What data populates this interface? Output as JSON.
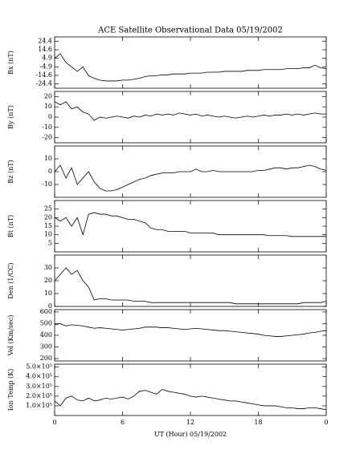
{
  "title": "ACE Satellite Observational Data   05/19/2002",
  "xlabel": "UT (Hour)  05/19/2002",
  "chart_data": [
    {
      "type": "line",
      "ylabel": "Bx (nT)",
      "color": "#000000",
      "x": [
        0,
        0.5,
        1,
        1.5,
        2,
        2.5,
        3,
        3.5,
        4,
        4.5,
        5,
        5.5,
        6,
        6.5,
        7,
        7.5,
        8,
        8.5,
        9,
        9.5,
        10,
        10.5,
        11,
        11.5,
        12,
        12.5,
        13,
        13.5,
        14,
        14.5,
        15,
        15.5,
        16,
        16.5,
        17,
        17.5,
        18,
        18.5,
        19,
        19.5,
        20,
        20.5,
        21,
        21.5,
        22,
        22.5,
        23,
        23.5,
        24
      ],
      "values": [
        5,
        10,
        0,
        -5,
        -10,
        -5,
        -15,
        -18,
        -20,
        -21,
        -21,
        -21,
        -20,
        -20,
        -19,
        -18,
        -16,
        -15,
        -15,
        -14,
        -14,
        -13,
        -13,
        -13,
        -12,
        -12,
        -12,
        -11,
        -11,
        -11,
        -10,
        -10,
        -10,
        -10,
        -9,
        -9,
        -9,
        -8,
        -8,
        -8,
        -8,
        -7,
        -7,
        -7,
        -6,
        -6,
        -3,
        -6,
        -7
      ],
      "ylim": [
        -29.3,
        29.3
      ],
      "yticks": [
        24.4,
        14.6,
        4.9,
        -4.9,
        -14.6,
        -24.4
      ],
      "xlim": [
        0,
        24
      ],
      "xticks": [
        0,
        6,
        12,
        18,
        {
          "value": 24,
          "label": "0"
        }
      ]
    },
    {
      "type": "line",
      "ylabel": "By (nT)",
      "color": "#000000",
      "x": [
        0,
        0.5,
        1,
        1.5,
        2,
        2.5,
        3,
        3.5,
        4,
        4.5,
        5,
        5.5,
        6,
        6.5,
        7,
        7.5,
        8,
        8.5,
        9,
        9.5,
        10,
        10.5,
        11,
        11.5,
        12,
        12.5,
        13,
        13.5,
        14,
        14.5,
        15,
        15.5,
        16,
        16.5,
        17,
        17.5,
        18,
        18.5,
        19,
        19.5,
        20,
        20.5,
        21,
        21.5,
        22,
        22.5,
        23,
        23.5,
        24
      ],
      "values": [
        15,
        12,
        15,
        8,
        10,
        5,
        3,
        -3,
        0,
        -1,
        0,
        1,
        0,
        -1,
        1,
        0,
        2,
        1,
        3,
        2,
        3,
        2,
        4,
        3,
        2,
        3,
        1,
        2,
        1,
        0,
        1,
        0,
        -1,
        0,
        1,
        0,
        1,
        2,
        1,
        2,
        2,
        3,
        2,
        3,
        2,
        3,
        4,
        3,
        3
      ],
      "ylim": [
        -25,
        25
      ],
      "yticks": [
        20,
        10,
        0,
        -10,
        -20
      ],
      "xlim": [
        0,
        24
      ],
      "xticks": [
        0,
        6,
        12,
        18,
        {
          "value": 24,
          "label": "0"
        }
      ]
    },
    {
      "type": "line",
      "ylabel": "Bz (nT)",
      "color": "#000000",
      "x": [
        0,
        0.5,
        1,
        1.5,
        2,
        2.5,
        3,
        3.5,
        4,
        4.5,
        5,
        5.5,
        6,
        6.5,
        7,
        7.5,
        8,
        8.5,
        9,
        9.5,
        10,
        10.5,
        11,
        11.5,
        12,
        12.5,
        13,
        13.5,
        14,
        14.5,
        15,
        15.5,
        16,
        16.5,
        17,
        17.5,
        18,
        18.5,
        19,
        19.5,
        20,
        20.5,
        21,
        21.5,
        22,
        22.5,
        23,
        23.5,
        24
      ],
      "values": [
        0,
        5,
        -5,
        3,
        -10,
        -5,
        0,
        -8,
        -13,
        -15,
        -15,
        -14,
        -12,
        -10,
        -8,
        -6,
        -5,
        -3,
        -2,
        -1,
        -1,
        -1,
        0,
        0,
        0,
        2,
        0,
        0,
        1,
        0,
        0,
        0,
        0,
        0,
        0,
        0,
        1,
        1,
        2,
        3,
        3,
        2,
        3,
        3,
        4,
        5,
        4,
        2,
        1
      ],
      "ylim": [
        -20,
        20
      ],
      "yticks": [
        10,
        0,
        -10
      ],
      "xlim": [
        0,
        24
      ],
      "xticks": [
        0,
        6,
        12,
        18,
        {
          "value": 24,
          "label": "0"
        }
      ]
    },
    {
      "type": "line",
      "ylabel": "Bt (nT)",
      "color": "#000000",
      "x": [
        0,
        0.5,
        1,
        1.5,
        2,
        2.5,
        3,
        3.5,
        4,
        4.5,
        5,
        5.5,
        6,
        6.5,
        7,
        7.5,
        8,
        8.5,
        9,
        9.5,
        10,
        10.5,
        11,
        11.5,
        12,
        12.5,
        13,
        13.5,
        14,
        14.5,
        15,
        15.5,
        16,
        16.5,
        17,
        17.5,
        18,
        18.5,
        19,
        19.5,
        20,
        20.5,
        21,
        21.5,
        22,
        22.5,
        23,
        23.5,
        24
      ],
      "values": [
        20,
        18,
        20,
        15,
        20,
        10,
        22,
        23,
        22,
        22,
        21,
        21,
        20,
        19,
        19,
        18,
        17,
        14,
        13,
        13,
        12,
        12,
        12,
        12,
        11,
        11,
        11,
        11,
        11,
        10,
        10,
        10,
        10,
        10,
        10,
        10,
        10,
        10,
        9.5,
        9.5,
        9.5,
        9.5,
        9,
        9,
        9,
        9,
        9,
        9,
        9
      ],
      "ylim": [
        0,
        30
      ],
      "yticks": [
        5,
        10,
        15,
        20,
        25
      ],
      "xlim": [
        0,
        24
      ],
      "xticks": [
        0,
        6,
        12,
        18,
        {
          "value": 24,
          "label": "0"
        }
      ]
    },
    {
      "type": "line",
      "ylabel": "Den (1/CC)",
      "color": "#000000",
      "x": [
        0,
        0.5,
        1,
        1.5,
        2,
        2.5,
        3,
        3.5,
        4,
        4.5,
        5,
        5.5,
        6,
        6.5,
        7,
        7.5,
        8,
        8.5,
        9,
        9.5,
        10,
        10.5,
        11,
        11.5,
        12,
        12.5,
        13,
        13.5,
        14,
        14.5,
        15,
        15.5,
        16,
        16.5,
        17,
        17.5,
        18,
        18.5,
        19,
        19.5,
        20,
        20.5,
        21,
        21.5,
        22,
        22.5,
        23,
        23.5,
        24
      ],
      "values": [
        20,
        25,
        30,
        25,
        28,
        20,
        15,
        5,
        6,
        6,
        5,
        5,
        5,
        5,
        4,
        4,
        4,
        3,
        3,
        3,
        3,
        3,
        3,
        3,
        3,
        3,
        3,
        3,
        3,
        3,
        3,
        3,
        2,
        2,
        2,
        2,
        2,
        2,
        2,
        2,
        2,
        2,
        2,
        2,
        3,
        3,
        3,
        3,
        4
      ],
      "ylim": [
        0,
        40
      ],
      "yticks": [
        0,
        10,
        20,
        30
      ],
      "xlim": [
        0,
        24
      ],
      "xticks": [
        0,
        6,
        12,
        18,
        {
          "value": 24,
          "label": "0"
        }
      ]
    },
    {
      "type": "line",
      "ylabel": "Vel (Km/sec)",
      "color": "#000000",
      "x": [
        0,
        0.5,
        1,
        1.5,
        2,
        2.5,
        3,
        3.5,
        4,
        4.5,
        5,
        5.5,
        6,
        6.5,
        7,
        7.5,
        8,
        8.5,
        9,
        9.5,
        10,
        10.5,
        11,
        11.5,
        12,
        12.5,
        13,
        13.5,
        14,
        14.5,
        15,
        15.5,
        16,
        16.5,
        17,
        17.5,
        18,
        18.5,
        19,
        19.5,
        20,
        20.5,
        21,
        21.5,
        22,
        22.5,
        23,
        23.5,
        24
      ],
      "values": [
        490,
        500,
        480,
        490,
        485,
        480,
        470,
        460,
        465,
        460,
        455,
        450,
        445,
        450,
        455,
        460,
        470,
        470,
        470,
        465,
        465,
        460,
        455,
        450,
        455,
        460,
        455,
        450,
        445,
        440,
        440,
        435,
        430,
        425,
        420,
        415,
        410,
        400,
        395,
        390,
        390,
        395,
        400,
        405,
        410,
        420,
        425,
        435,
        440
      ],
      "ylim": [
        180,
        620
      ],
      "yticks": [
        200,
        300,
        400,
        500,
        600
      ],
      "xlim": [
        0,
        24
      ],
      "xticks": [
        0,
        6,
        12,
        18,
        {
          "value": 24,
          "label": "0"
        }
      ]
    },
    {
      "type": "line",
      "ylabel": "Ion Temp (K)",
      "color": "#000000",
      "x": [
        0,
        0.5,
        1,
        1.5,
        2,
        2.5,
        3,
        3.5,
        4,
        4.5,
        5,
        5.5,
        6,
        6.5,
        7,
        7.5,
        8,
        8.5,
        9,
        9.5,
        10,
        10.5,
        11,
        11.5,
        12,
        12.5,
        13,
        13.5,
        14,
        14.5,
        15,
        15.5,
        16,
        16.5,
        17,
        17.5,
        18,
        18.5,
        19,
        19.5,
        20,
        20.5,
        21,
        21.5,
        22,
        22.5,
        23,
        23.5,
        24
      ],
      "values": [
        150000,
        100000,
        180000,
        200000,
        160000,
        150000,
        180000,
        150000,
        160000,
        180000,
        170000,
        180000,
        190000,
        170000,
        200000,
        250000,
        260000,
        240000,
        220000,
        270000,
        250000,
        240000,
        230000,
        220000,
        200000,
        190000,
        200000,
        190000,
        180000,
        170000,
        160000,
        150000,
        150000,
        140000,
        130000,
        120000,
        110000,
        100000,
        100000,
        100000,
        90000,
        80000,
        80000,
        70000,
        70000,
        80000,
        80000,
        70000,
        60000
      ],
      "ylim": [
        0,
        530000
      ],
      "yticks": [
        {
          "value": 100000,
          "label": "1.0×10⁵"
        },
        {
          "value": 200000,
          "label": "2.0×10⁵"
        },
        {
          "value": 300000,
          "label": "3.0×10⁵"
        },
        {
          "value": 400000,
          "label": "4.0×10⁵"
        },
        {
          "value": 500000,
          "label": "5.0×10⁵"
        }
      ],
      "xlim": [
        0,
        24
      ],
      "xticks": [
        0,
        6,
        12,
        18,
        {
          "value": 24,
          "label": "0"
        }
      ]
    }
  ]
}
